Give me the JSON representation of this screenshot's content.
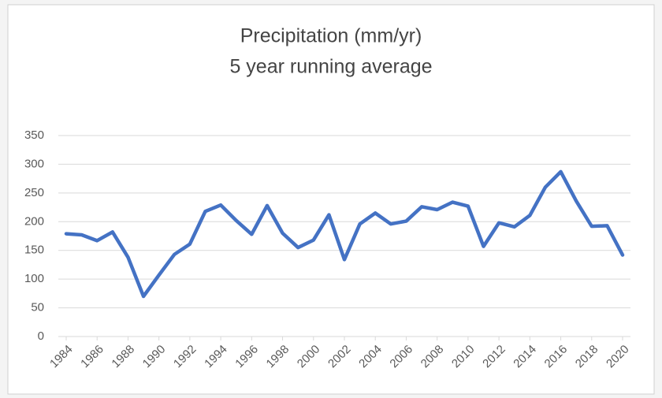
{
  "chart_data": {
    "type": "line",
    "title": "Precipitation (mm/yr)",
    "subtitle": "5 year running average",
    "x": [
      1984,
      1985,
      1986,
      1987,
      1988,
      1989,
      1990,
      1991,
      1992,
      1993,
      1994,
      1995,
      1996,
      1997,
      1998,
      1999,
      2000,
      2001,
      2002,
      2003,
      2004,
      2005,
      2006,
      2007,
      2008,
      2009,
      2010,
      2011,
      2012,
      2013,
      2014,
      2015,
      2016,
      2017,
      2018,
      2019,
      2020
    ],
    "series": [
      {
        "name": "Precipitation",
        "color": "#4472c4",
        "values": [
          179,
          177,
          167,
          182,
          138,
          70,
          107,
          143,
          161,
          218,
          229,
          202,
          178,
          228,
          180,
          155,
          168,
          212,
          134,
          196,
          215,
          196,
          201,
          226,
          221,
          234,
          227,
          157,
          198,
          191,
          211,
          260,
          287,
          236,
          192,
          193,
          142
        ]
      }
    ],
    "xlim": [
      1984,
      2020
    ],
    "xticks": [
      1984,
      1986,
      1988,
      1990,
      1992,
      1994,
      1996,
      1998,
      2000,
      2002,
      2004,
      2006,
      2008,
      2010,
      2012,
      2014,
      2016,
      2018,
      2020
    ],
    "ylim": [
      0,
      350
    ],
    "yticks": [
      0,
      50,
      100,
      150,
      200,
      250,
      300,
      350
    ],
    "grid": true
  }
}
